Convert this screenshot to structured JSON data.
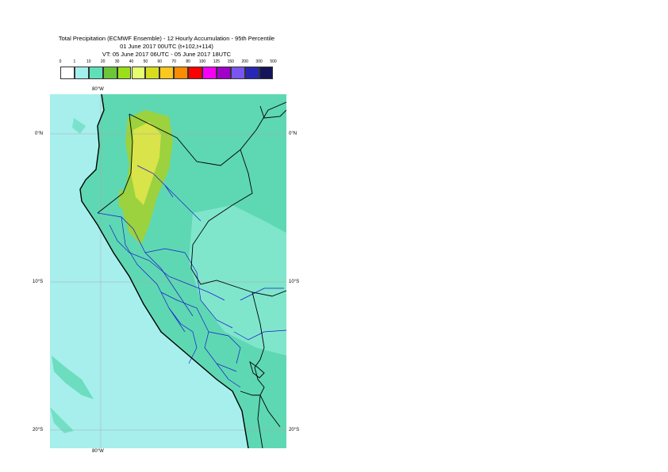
{
  "title": {
    "line1": "Total Precipitation (ECMWF Ensemble) - 12 Hourly Accumulation - 95th Percentile",
    "line2": "01 June 2017 00UTC (t+102,t+114)",
    "line3": "VT: 05 June 2017 06UTC - 05 June 2017 18UTC"
  },
  "legend": {
    "thresholds": [
      "0",
      "1",
      "10",
      "20",
      "30",
      "40",
      "50",
      "60",
      "70",
      "80",
      "100",
      "125",
      "150",
      "200",
      "300",
      "500"
    ],
    "colors": [
      "#ffffff",
      "#a4f0ee",
      "#5fe0b8",
      "#6bc63a",
      "#99e01a",
      "#e6ff6e",
      "#d8de1e",
      "#fac81e",
      "#fa8c00",
      "#ff0000",
      "#f500f5",
      "#a000c8",
      "#7a55f0",
      "#2828b4",
      "#14145a"
    ]
  },
  "axes": {
    "lat_labels": [
      "0°N",
      "10°S",
      "20°S"
    ],
    "lon_label": "80°W"
  },
  "colors": {
    "ocean": "#a6efed",
    "moderate": "#5ed8b2",
    "heavy": "#9bd23e",
    "heaviest": "#d9e34a",
    "coast": "#000000",
    "regions": "#1a1acc"
  }
}
